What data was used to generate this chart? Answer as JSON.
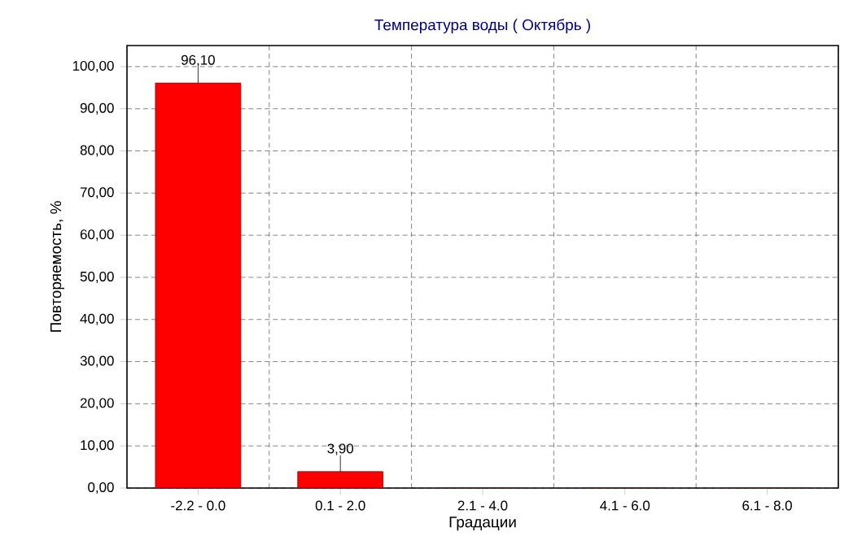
{
  "chart_data": {
    "type": "bar",
    "title": "Температура воды    ( Октябрь )",
    "xlabel": "Градации",
    "ylabel": "Повторяемость, %",
    "categories": [
      "-2.2 - 0.0",
      "0.1 - 2.0",
      "2.1 - 4.0",
      "4.1 - 6.0",
      "6.1 - 8.0"
    ],
    "values": [
      96.1,
      3.9,
      0,
      0,
      0
    ],
    "value_labels": [
      "96,10",
      "3,90",
      null,
      null,
      null
    ],
    "color": "#ff0000",
    "ylim": [
      0,
      105
    ],
    "yticks": [
      {
        "value": 0,
        "label": "0,00"
      },
      {
        "value": 10,
        "label": "10,00"
      },
      {
        "value": 20,
        "label": "20,00"
      },
      {
        "value": 30,
        "label": "30,00"
      },
      {
        "value": 40,
        "label": "40,00"
      },
      {
        "value": 50,
        "label": "50,00"
      },
      {
        "value": 60,
        "label": "60,00"
      },
      {
        "value": 70,
        "label": "70,00"
      },
      {
        "value": 80,
        "label": "80,00"
      },
      {
        "value": 90,
        "label": "90,00"
      },
      {
        "value": 100,
        "label": "100,00"
      }
    ],
    "grid": true
  }
}
